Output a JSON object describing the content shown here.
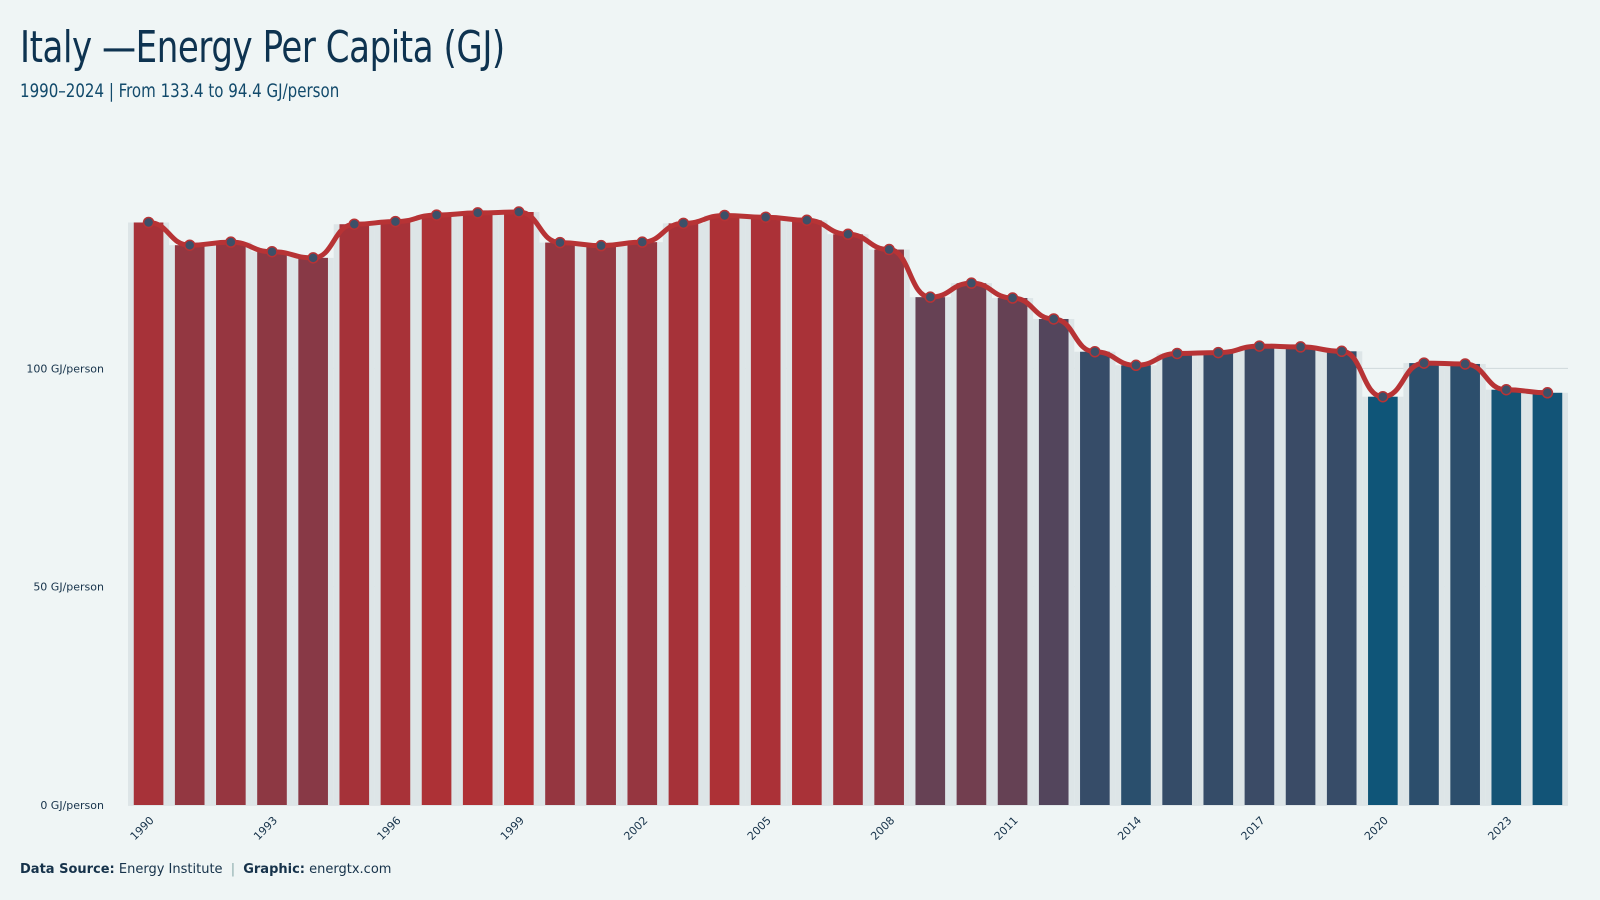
{
  "title": "Italy —Energy Per Capita (GJ)",
  "subtitle": "1990–2024 | From 133.4 to 94.4 GJ/person",
  "footer": {
    "source_label": "Data Source:",
    "source_value": "Energy Institute",
    "separator": "|",
    "graphic_label": "Graphic:",
    "graphic_value": "energtx.com"
  },
  "chart_data": {
    "type": "bar",
    "x": [
      1990,
      1991,
      1992,
      1993,
      1994,
      1995,
      1996,
      1997,
      1998,
      1999,
      2000,
      2001,
      2002,
      2003,
      2004,
      2005,
      2006,
      2007,
      2008,
      2009,
      2010,
      2011,
      2012,
      2013,
      2014,
      2015,
      2016,
      2017,
      2018,
      2019,
      2020,
      2021,
      2022,
      2023,
      2024
    ],
    "values": [
      133.4,
      128.2,
      128.9,
      126.7,
      125.3,
      133.0,
      133.6,
      135.1,
      135.6,
      135.8,
      128.8,
      128.1,
      128.9,
      133.2,
      135.0,
      134.6,
      133.9,
      130.7,
      127.2,
      116.3,
      119.5,
      116.1,
      111.3,
      103.8,
      100.7,
      103.4,
      103.6,
      105.1,
      104.9,
      103.9,
      93.5,
      101.2,
      101.0,
      95.1,
      94.4
    ],
    "tick_labels": [
      "1990",
      "1993",
      "1996",
      "1999",
      "2002",
      "2005",
      "2008",
      "2011",
      "2014",
      "2017",
      "2020",
      "2023"
    ],
    "y_ticks": [
      0,
      50,
      100
    ],
    "y_tick_suffix": " GJ/person",
    "ylim": [
      0,
      150
    ],
    "xlabel": "",
    "ylabel": "",
    "grid": true,
    "legend": "none",
    "overlay_line": true,
    "colors": {
      "high": "#b03035",
      "low": "#0f5578",
      "line": "#b73335",
      "marker": "#3d5068",
      "grid": "#cfd8da",
      "bar_bg": "#dde5e7"
    }
  }
}
